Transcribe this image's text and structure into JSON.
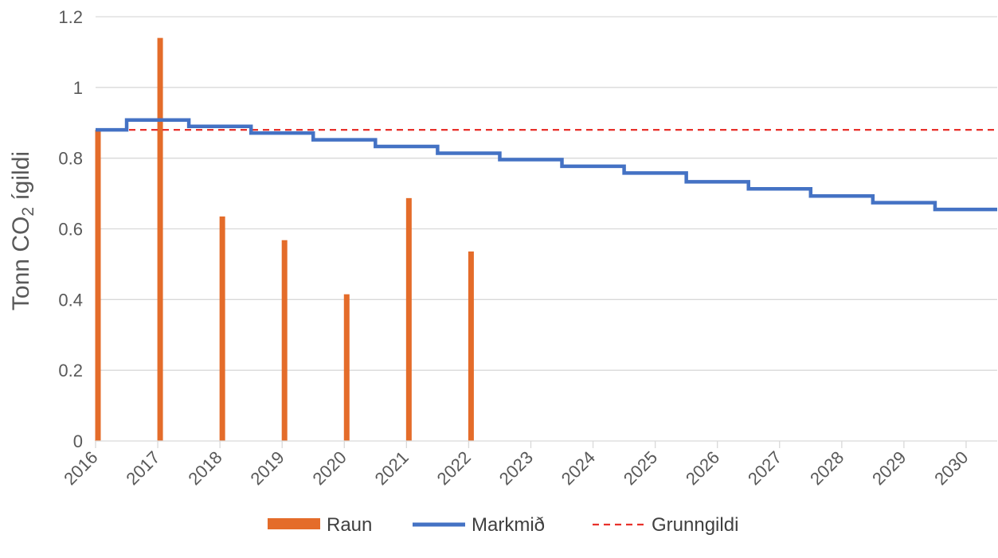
{
  "chart_data": {
    "type": "bar",
    "ylabel_main": "Tonn CO",
    "ylabel_sub": "2",
    "ylabel_tail": " ígildi",
    "xlim": [
      2016,
      2030.5
    ],
    "ylim": [
      0,
      1.2
    ],
    "yticks": [
      "0",
      "0.2",
      "0.4",
      "0.6",
      "0.8",
      "1",
      "1.2"
    ],
    "ytick_values": [
      0,
      0.2,
      0.4,
      0.6,
      0.8,
      1.0,
      1.2
    ],
    "xticks": [
      "2016",
      "2017",
      "2018",
      "2019",
      "2020",
      "2021",
      "2022",
      "2023",
      "2024",
      "2025",
      "2026",
      "2027",
      "2028",
      "2029",
      "2030"
    ],
    "xtick_values": [
      2016,
      2017,
      2018,
      2019,
      2020,
      2021,
      2022,
      2023,
      2024,
      2025,
      2026,
      2027,
      2028,
      2029,
      2030
    ],
    "grid": true,
    "legend_position": "bottom",
    "series": [
      {
        "name": "Raun",
        "type": "bar",
        "color": "#E46C2A",
        "x": [
          2016,
          2017,
          2018,
          2019,
          2020,
          2021,
          2022
        ],
        "values": [
          0.88,
          1.14,
          0.635,
          0.568,
          0.415,
          0.687,
          0.536
        ]
      },
      {
        "name": "Markmið",
        "type": "step",
        "color": "#4472C4",
        "x": [
          2016,
          2017,
          2018,
          2019,
          2020,
          2021,
          2022,
          2023,
          2024,
          2025,
          2026,
          2027,
          2028,
          2029,
          2030
        ],
        "values": [
          0.88,
          0.908,
          0.89,
          0.871,
          0.852,
          0.833,
          0.814,
          0.796,
          0.777,
          0.758,
          0.733,
          0.713,
          0.693,
          0.674,
          0.655
        ]
      },
      {
        "name": "Grunngildi",
        "type": "dashed-line",
        "color": "#E8312B",
        "value": 0.88
      }
    ]
  }
}
